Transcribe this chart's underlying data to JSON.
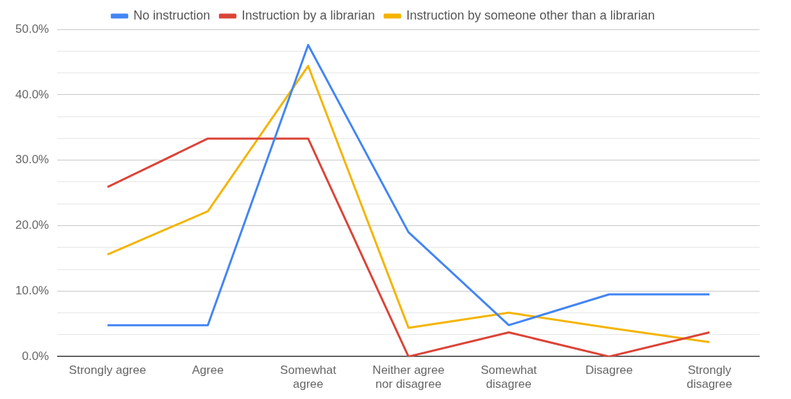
{
  "chart_data": {
    "type": "line",
    "categories": [
      "Strongly agree",
      "Agree",
      "Somewhat agree",
      "Neither agree nor disagree",
      "Somewhat disagree",
      "Disagree",
      "Strongly disagree"
    ],
    "series": [
      {
        "name": "No instruction",
        "color": "#4285f4",
        "values": [
          4.8,
          4.8,
          47.6,
          19,
          4.8,
          9.5,
          9.5
        ]
      },
      {
        "name": "Instruction by a librarian",
        "color": "#db4437",
        "values": [
          25.9,
          33.3,
          33.3,
          0,
          3.7,
          0,
          3.7
        ]
      },
      {
        "name": "Instruction by someone other than a librarian",
        "color": "#f4b400",
        "values": [
          15.6,
          22.2,
          44.4,
          4.4,
          6.7,
          4.4,
          2.2
        ]
      }
    ],
    "ylim": [
      0,
      50
    ],
    "yticks": [
      {
        "value": 0,
        "label": "0.0%"
      },
      {
        "value": 3.333,
        "label": null
      },
      {
        "value": 6.667,
        "label": null
      },
      {
        "value": 10,
        "label": "10.0%"
      },
      {
        "value": 13.333,
        "label": null
      },
      {
        "value": 16.667,
        "label": null
      },
      {
        "value": 20,
        "label": "20.0%"
      },
      {
        "value": 23.333,
        "label": null
      },
      {
        "value": 26.667,
        "label": null
      },
      {
        "value": 30,
        "label": "30.0%"
      },
      {
        "value": 33.333,
        "label": null
      },
      {
        "value": 36.667,
        "label": null
      },
      {
        "value": 40,
        "label": "40.0%"
      },
      {
        "value": 43.333,
        "label": null
      },
      {
        "value": 46.667,
        "label": null
      },
      {
        "value": 50,
        "label": "50.0%"
      }
    ],
    "grid": "y",
    "legend": "top",
    "marker": "none",
    "line_style": "solid"
  }
}
